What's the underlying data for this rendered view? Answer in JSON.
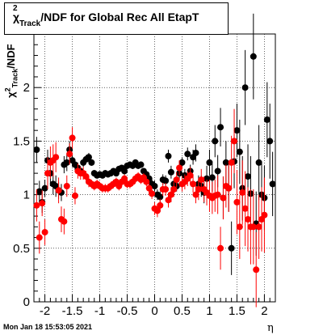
{
  "title": {
    "chi": "χ",
    "sup": "2",
    "sub": "Track",
    "rest": "/NDF for Global Rec All EtapT"
  },
  "footer": "Mon Jan 18 15:53:05 2021",
  "chart_data": {
    "type": "scatter",
    "title": "χ²_Track/NDF for Global Rec All EtapT",
    "xlabel": "η",
    "ylabel": "χ²_Track/NDF",
    "xlim": [
      -2.2,
      2.2
    ],
    "ylim": [
      0,
      2.5
    ],
    "xticks": [
      "-2",
      "-1.5",
      "-1",
      "-0.5",
      "0",
      "0.5",
      "1",
      "1.5",
      "2"
    ],
    "xtick_values": [
      -2,
      -1.5,
      -1,
      -0.5,
      0,
      0.5,
      1,
      1.5,
      2
    ],
    "yticks": [
      "0",
      "0.5",
      "1",
      "1.5",
      "2"
    ],
    "ytick_values": [
      0,
      0.5,
      1,
      1.5,
      2
    ],
    "grid": true,
    "series": [
      {
        "color": "#000000",
        "points": [
          [
            -2.15,
            1.42,
            0.12
          ],
          [
            -2.1,
            1.03,
            0.1
          ],
          [
            -2.05,
            0.93,
            0.1
          ],
          [
            -2.0,
            1.06,
            0.08
          ],
          [
            -1.95,
            1.32,
            0.1
          ],
          [
            -1.9,
            1.2,
            0.12
          ],
          [
            -1.85,
            1.1,
            0.1
          ],
          [
            -1.8,
            1.08,
            0.1
          ],
          [
            -1.75,
            1.04,
            0.08
          ],
          [
            -1.7,
            1.02,
            0.08
          ],
          [
            -1.65,
            1.28,
            0.08
          ],
          [
            -1.6,
            1.3,
            0.08
          ],
          [
            -1.55,
            1.42,
            0.08
          ],
          [
            -1.5,
            1.32,
            0.06
          ],
          [
            -1.45,
            1.28,
            0.05
          ],
          [
            -1.4,
            1.25,
            0.05
          ],
          [
            -1.35,
            1.22,
            0.04
          ],
          [
            -1.3,
            1.3,
            0.04
          ],
          [
            -1.25,
            1.33,
            0.04
          ],
          [
            -1.2,
            1.35,
            0.04
          ],
          [
            -1.15,
            1.3,
            0.03
          ],
          [
            -1.1,
            1.2,
            0.03
          ],
          [
            -1.05,
            1.18,
            0.03
          ],
          [
            -1.0,
            1.19,
            0.03
          ],
          [
            -0.95,
            1.18,
            0.03
          ],
          [
            -0.9,
            1.2,
            0.03
          ],
          [
            -0.85,
            1.19,
            0.03
          ],
          [
            -0.8,
            1.2,
            0.03
          ],
          [
            -0.75,
            1.22,
            0.03
          ],
          [
            -0.7,
            1.2,
            0.03
          ],
          [
            -0.65,
            1.24,
            0.03
          ],
          [
            -0.6,
            1.25,
            0.03
          ],
          [
            -0.55,
            1.22,
            0.03
          ],
          [
            -0.5,
            1.27,
            0.03
          ],
          [
            -0.45,
            1.28,
            0.03
          ],
          [
            -0.4,
            1.27,
            0.03
          ],
          [
            -0.35,
            1.3,
            0.03
          ],
          [
            -0.3,
            1.27,
            0.03
          ],
          [
            -0.25,
            1.28,
            0.03
          ],
          [
            -0.2,
            1.22,
            0.03
          ],
          [
            -0.15,
            1.19,
            0.03
          ],
          [
            -0.1,
            1.15,
            0.04
          ],
          [
            -0.05,
            1.1,
            0.04
          ],
          [
            0.0,
            1.08,
            0.05
          ],
          [
            0.05,
            1.0,
            0.05
          ],
          [
            0.1,
            0.98,
            0.05
          ],
          [
            0.15,
            1.14,
            0.05
          ],
          [
            0.2,
            1.13,
            0.05
          ],
          [
            0.25,
            1.36,
            0.06
          ],
          [
            0.3,
            1.21,
            0.06
          ],
          [
            0.35,
            1.1,
            0.05
          ],
          [
            0.4,
            1.08,
            0.05
          ],
          [
            0.45,
            1.2,
            0.05
          ],
          [
            0.5,
            1.3,
            0.05
          ],
          [
            0.55,
            1.18,
            0.06
          ],
          [
            0.6,
            1.38,
            0.06
          ],
          [
            0.65,
            1.22,
            0.06
          ],
          [
            0.7,
            1.35,
            0.07
          ],
          [
            0.75,
            1.39,
            0.08
          ],
          [
            0.8,
            1.1,
            0.08
          ],
          [
            0.85,
            1.08,
            0.1
          ],
          [
            0.9,
            1.02,
            0.1
          ],
          [
            0.95,
            1.15,
            0.12
          ],
          [
            1.0,
            1.3,
            0.12
          ],
          [
            1.05,
            1.16,
            0.13
          ],
          [
            1.1,
            1.5,
            0.15
          ],
          [
            1.15,
            1.22,
            0.15
          ],
          [
            1.2,
            1.63,
            0.18
          ],
          [
            1.25,
            0.97,
            0.2
          ],
          [
            1.3,
            1.3,
            0.2
          ],
          [
            1.35,
            1.06,
            0.22
          ],
          [
            1.4,
            0.5,
            0.25
          ],
          [
            1.45,
            1.31,
            0.25
          ],
          [
            1.5,
            1.6,
            0.25
          ],
          [
            1.55,
            1.4,
            0.3
          ],
          [
            1.6,
            1.06,
            0.3
          ],
          [
            1.65,
            2.0,
            0.35
          ],
          [
            1.7,
            1.17,
            0.3
          ],
          [
            1.75,
            1.01,
            0.35
          ],
          [
            1.8,
            2.29,
            0.4
          ],
          [
            1.85,
            0.73,
            0.3
          ],
          [
            1.9,
            1.3,
            0.35
          ],
          [
            1.95,
            1.0,
            0.3
          ],
          [
            2.0,
            0.97,
            0.3
          ],
          [
            2.05,
            1.7,
            0.35
          ],
          [
            2.1,
            1.5,
            0.35
          ],
          [
            2.15,
            1.1,
            0.3
          ]
        ]
      },
      {
        "color": "#ff0000",
        "points": [
          [
            -2.15,
            0.9,
            0.15
          ],
          [
            -2.1,
            0.6,
            0.15
          ],
          [
            -2.05,
            0.92,
            0.12
          ],
          [
            -2.0,
            0.65,
            0.12
          ],
          [
            -1.95,
            1.2,
            0.15
          ],
          [
            -1.9,
            1.3,
            0.15
          ],
          [
            -1.85,
            1.32,
            0.15
          ],
          [
            -1.8,
            1.35,
            0.14
          ],
          [
            -1.75,
            1.04,
            0.12
          ],
          [
            -1.7,
            0.77,
            0.12
          ],
          [
            -1.65,
            0.75,
            0.12
          ],
          [
            -1.6,
            1.08,
            0.1
          ],
          [
            -1.55,
            1.38,
            0.1
          ],
          [
            -1.5,
            1.53,
            0.1
          ],
          [
            -1.45,
            0.99,
            0.08
          ],
          [
            -1.4,
            1.22,
            0.07
          ],
          [
            -1.35,
            1.2,
            0.06
          ],
          [
            -1.3,
            1.2,
            0.06
          ],
          [
            -1.25,
            1.17,
            0.05
          ],
          [
            -1.2,
            1.12,
            0.05
          ],
          [
            -1.15,
            1.1,
            0.04
          ],
          [
            -1.1,
            1.08,
            0.04
          ],
          [
            -1.05,
            1.1,
            0.04
          ],
          [
            -1.0,
            1.08,
            0.04
          ],
          [
            -0.95,
            1.06,
            0.04
          ],
          [
            -0.9,
            1.06,
            0.04
          ],
          [
            -0.85,
            1.06,
            0.04
          ],
          [
            -0.8,
            1.08,
            0.04
          ],
          [
            -0.75,
            1.1,
            0.04
          ],
          [
            -0.7,
            1.12,
            0.04
          ],
          [
            -0.65,
            1.08,
            0.04
          ],
          [
            -0.6,
            1.12,
            0.04
          ],
          [
            -0.55,
            1.15,
            0.04
          ],
          [
            -0.5,
            1.1,
            0.04
          ],
          [
            -0.45,
            1.1,
            0.04
          ],
          [
            -0.4,
            1.12,
            0.04
          ],
          [
            -0.35,
            1.15,
            0.04
          ],
          [
            -0.3,
            1.17,
            0.04
          ],
          [
            -0.25,
            1.14,
            0.04
          ],
          [
            -0.2,
            1.16,
            0.04
          ],
          [
            -0.15,
            1.12,
            0.04
          ],
          [
            -0.1,
            1.06,
            0.05
          ],
          [
            -0.05,
            1.01,
            0.05
          ],
          [
            0.0,
            0.87,
            0.06
          ],
          [
            0.05,
            0.85,
            0.06
          ],
          [
            0.1,
            0.9,
            0.06
          ],
          [
            0.15,
            1.05,
            0.06
          ],
          [
            0.2,
            1.05,
            0.06
          ],
          [
            0.25,
            0.95,
            0.07
          ],
          [
            0.3,
            1.0,
            0.07
          ],
          [
            0.35,
            1.05,
            0.07
          ],
          [
            0.4,
            1.14,
            0.07
          ],
          [
            0.45,
            1.25,
            0.07
          ],
          [
            0.5,
            1.1,
            0.07
          ],
          [
            0.55,
            1.12,
            0.07
          ],
          [
            0.6,
            1.15,
            0.07
          ],
          [
            0.65,
            1.18,
            0.08
          ],
          [
            0.7,
            1.1,
            0.08
          ],
          [
            0.75,
            1.0,
            0.08
          ],
          [
            0.8,
            1.05,
            0.1
          ],
          [
            0.85,
            1.14,
            0.1
          ],
          [
            0.9,
            1.05,
            0.12
          ],
          [
            0.95,
            1.02,
            0.12
          ],
          [
            1.0,
            0.99,
            0.15
          ],
          [
            1.05,
            0.97,
            0.15
          ],
          [
            1.1,
            0.99,
            0.15
          ],
          [
            1.15,
            1.0,
            0.18
          ],
          [
            1.2,
            0.5,
            0.2
          ],
          [
            1.25,
            0.97,
            0.2
          ],
          [
            1.3,
            1.08,
            0.2
          ],
          [
            1.35,
            1.06,
            0.22
          ],
          [
            1.4,
            1.3,
            0.25
          ],
          [
            1.45,
            1.5,
            0.3
          ],
          [
            1.5,
            0.93,
            0.3
          ],
          [
            1.55,
            0.7,
            0.3
          ],
          [
            1.6,
            1.02,
            0.3
          ],
          [
            1.65,
            0.87,
            0.35
          ],
          [
            1.7,
            0.77,
            0.3
          ],
          [
            1.75,
            0.7,
            0.35
          ],
          [
            1.8,
            0.7,
            0.35
          ],
          [
            1.85,
            0.3,
            0.35
          ],
          [
            1.9,
            0.7,
            0.3
          ],
          [
            1.95,
            0.77,
            0.3
          ],
          [
            2.0,
            0.81,
            0.35
          ]
        ]
      }
    ]
  }
}
